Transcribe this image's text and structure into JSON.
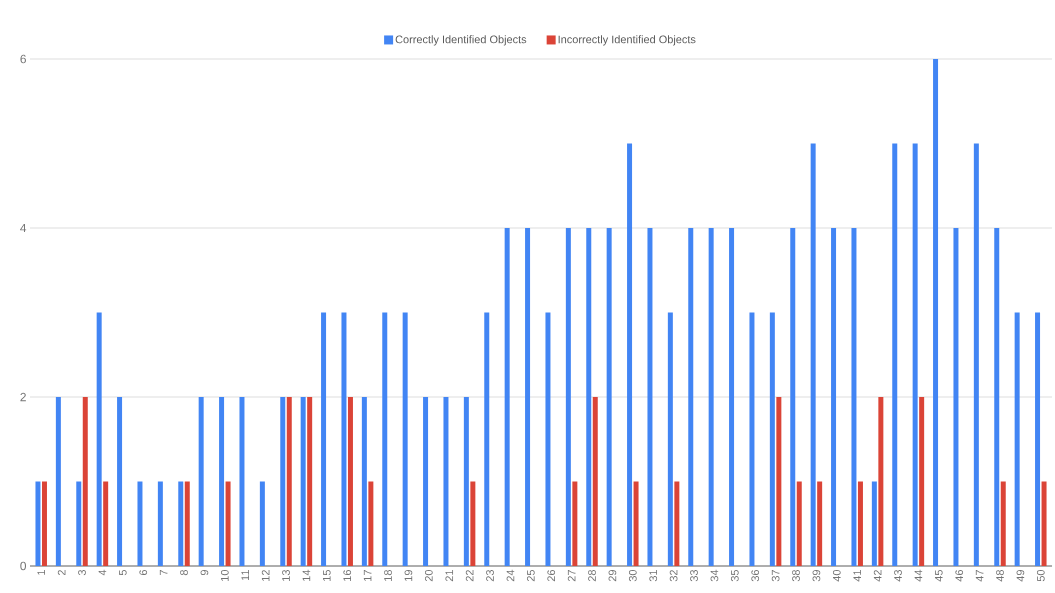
{
  "chart_data": {
    "type": "bar",
    "categories": [
      "1",
      "2",
      "3",
      "4",
      "5",
      "6",
      "7",
      "8",
      "9",
      "10",
      "11",
      "12",
      "13",
      "14",
      "15",
      "16",
      "17",
      "18",
      "19",
      "20",
      "21",
      "22",
      "23",
      "24",
      "25",
      "26",
      "27",
      "28",
      "29",
      "30",
      "31",
      "32",
      "33",
      "34",
      "35",
      "36",
      "37",
      "38",
      "39",
      "40",
      "41",
      "42",
      "43",
      "44",
      "45",
      "46",
      "47",
      "48",
      "49",
      "50"
    ],
    "series": [
      {
        "name": "Correctly Identified Objects",
        "color": "#4285f4",
        "values": [
          1,
          2,
          1,
          3,
          2,
          1,
          1,
          1,
          2,
          2,
          2,
          1,
          2,
          2,
          3,
          3,
          2,
          3,
          3,
          2,
          2,
          2,
          3,
          4,
          4,
          3,
          4,
          4,
          4,
          5,
          4,
          3,
          4,
          4,
          4,
          3,
          3,
          4,
          5,
          4,
          4,
          1,
          5,
          5,
          6,
          4,
          5,
          4,
          3,
          3
        ]
      },
      {
        "name": "Incorrectly Identified Objects",
        "color": "#db4437",
        "values": [
          1,
          0,
          2,
          1,
          0,
          0,
          0,
          1,
          0,
          1,
          0,
          0,
          2,
          2,
          0,
          2,
          1,
          0,
          0,
          0,
          0,
          1,
          0,
          0,
          0,
          0,
          1,
          2,
          0,
          1,
          0,
          1,
          0,
          0,
          0,
          0,
          2,
          1,
          1,
          0,
          1,
          2,
          0,
          2,
          0,
          0,
          0,
          1,
          0,
          1
        ]
      }
    ],
    "ylim": [
      0,
      6
    ],
    "yticks": [
      0,
      2,
      4,
      6
    ],
    "grid": "y",
    "legend": "top"
  }
}
